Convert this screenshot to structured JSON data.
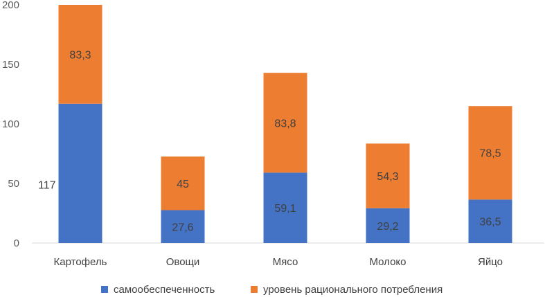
{
  "chart_data": {
    "type": "bar",
    "stacked": true,
    "title": "",
    "xlabel": "",
    "ylabel": "",
    "ylim": [
      0,
      200
    ],
    "yticks": [
      0,
      50,
      100,
      150,
      200
    ],
    "grid": false,
    "legend": "bottom",
    "categories": [
      "Картофель",
      "Овощи",
      "Мясо",
      "Молоко",
      "Яйцо"
    ],
    "series": [
      {
        "name": "самообеспеченность",
        "color": "#4472C4",
        "values": [
          117,
          27.6,
          59.1,
          29.2,
          36.5
        ],
        "labels": [
          "117",
          "27,6",
          "59,1",
          "29,2",
          "36,5"
        ]
      },
      {
        "name": "уровень рационального потребления",
        "color": "#ED7D31",
        "values": [
          83.3,
          45,
          83.8,
          54.3,
          78.5
        ],
        "labels": [
          "83,3",
          "45",
          "83,8",
          "54,3",
          "78,5"
        ]
      }
    ]
  }
}
